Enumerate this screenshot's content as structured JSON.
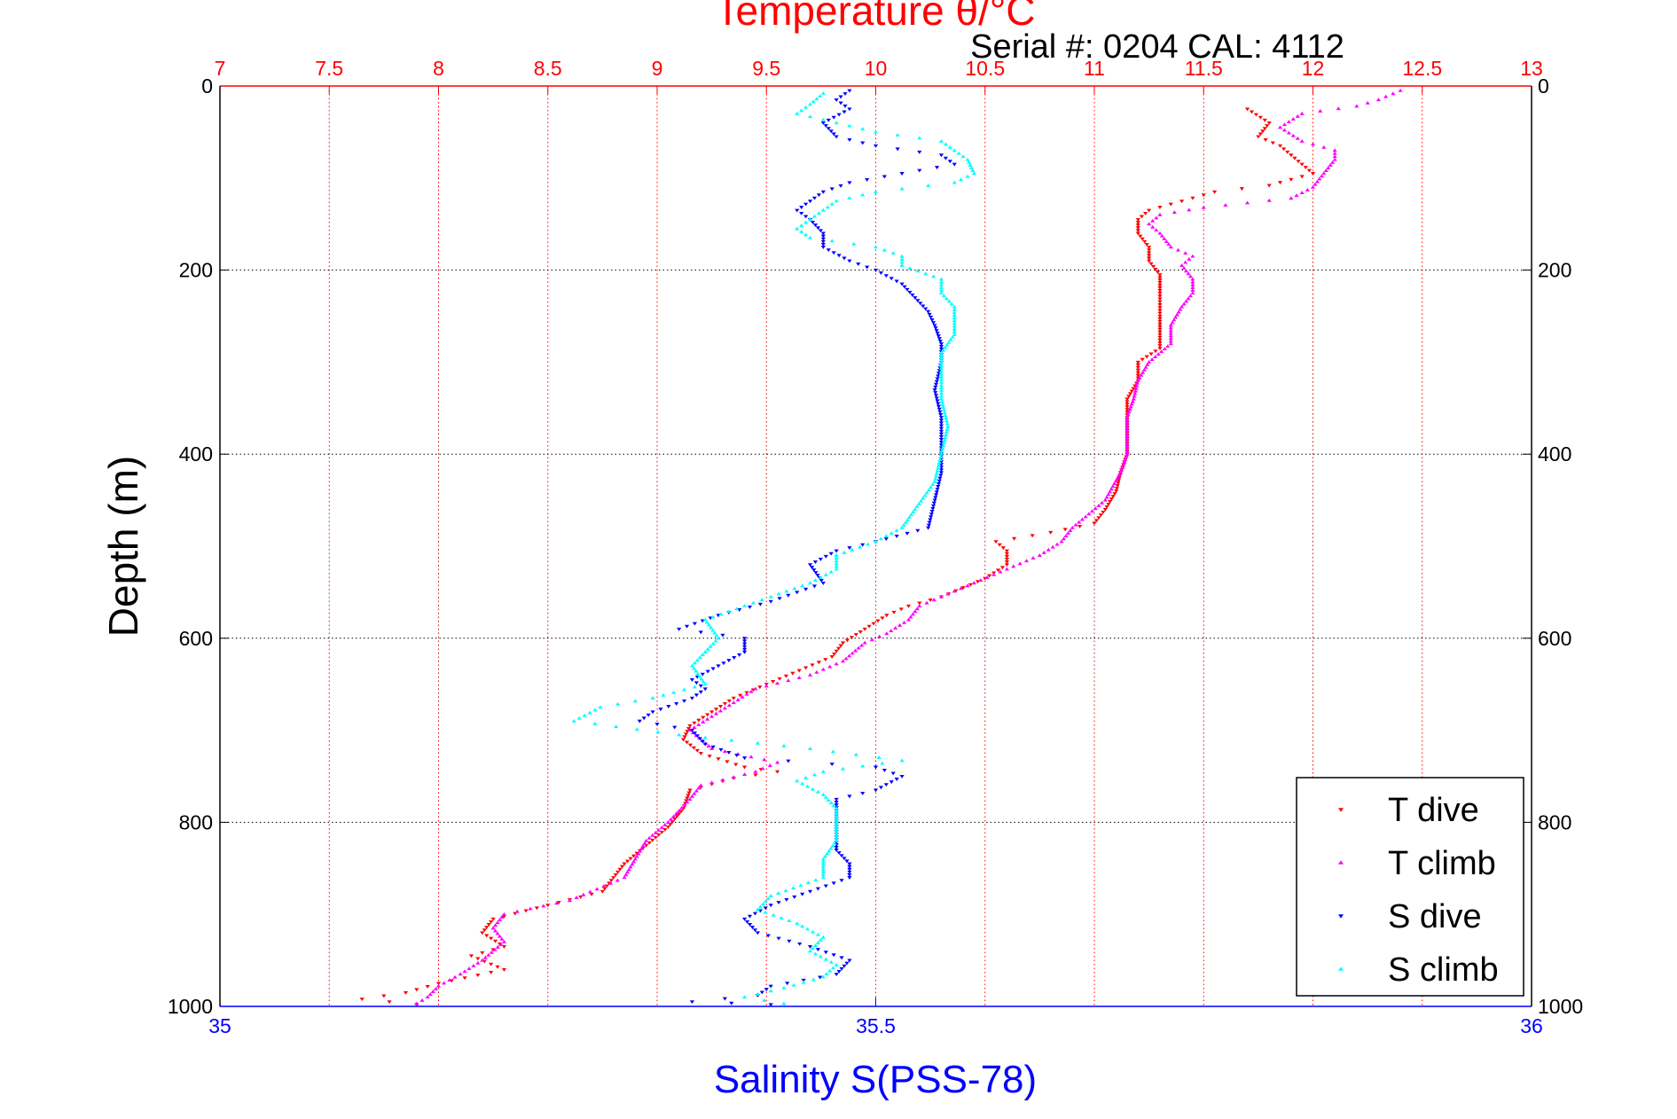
{
  "chart_data": {
    "type": "scatter",
    "title": "Temperature θ/°C",
    "subtitle": "Serial #: 0204  CAL: 4112",
    "ylabel": "Depth (m)",
    "xlabel_bottom": "Salinity S(PSS-78)",
    "y_axis": {
      "range": [
        0,
        1000
      ],
      "reversed": true,
      "ticks": [
        0,
        200,
        400,
        600,
        800,
        1000
      ],
      "tick_labels": [
        "0",
        "200",
        "400",
        "600",
        "800",
        "1000"
      ]
    },
    "temperature_axis": {
      "range": [
        7,
        13
      ],
      "ticks": [
        7,
        7.5,
        8,
        8.5,
        9,
        9.5,
        10,
        10.5,
        11,
        11.5,
        12,
        12.5,
        13
      ],
      "tick_labels": [
        "7",
        "7.5",
        "8",
        "8.5",
        "9",
        "9.5",
        "10",
        "10.5",
        "11",
        "11.5",
        "12",
        "12.5",
        "13"
      ],
      "color": "#ff0000"
    },
    "salinity_axis": {
      "range": [
        35,
        36
      ],
      "ticks": [
        35,
        35.5,
        36
      ],
      "tick_labels": [
        "35",
        "35.5",
        "36"
      ],
      "color": "#0000ff"
    },
    "grid": true,
    "legend_position": "bottom-right",
    "series": [
      {
        "name": "T dive",
        "axis": "temperature",
        "color": "#ff0000",
        "marker": "down-triangle",
        "points": [
          [
            11.7,
            25
          ],
          [
            11.8,
            40
          ],
          [
            11.75,
            55
          ],
          [
            11.85,
            65
          ],
          [
            11.9,
            75
          ],
          [
            11.95,
            85
          ],
          [
            12.0,
            95
          ],
          [
            11.8,
            108
          ],
          [
            11.55,
            115
          ],
          [
            11.4,
            125
          ],
          [
            11.25,
            135
          ],
          [
            11.2,
            145
          ],
          [
            11.2,
            160
          ],
          [
            11.25,
            175
          ],
          [
            11.25,
            190
          ],
          [
            11.3,
            205
          ],
          [
            11.3,
            225
          ],
          [
            11.3,
            250
          ],
          [
            11.3,
            270
          ],
          [
            11.3,
            285
          ],
          [
            11.2,
            300
          ],
          [
            11.2,
            320
          ],
          [
            11.15,
            340
          ],
          [
            11.15,
            360
          ],
          [
            11.15,
            380
          ],
          [
            11.15,
            400
          ],
          [
            11.12,
            420
          ],
          [
            11.1,
            440
          ],
          [
            11.05,
            460
          ],
          [
            11.0,
            475
          ],
          [
            10.8,
            485
          ],
          [
            10.55,
            495
          ],
          [
            10.6,
            505
          ],
          [
            10.6,
            520
          ],
          [
            10.5,
            535
          ],
          [
            10.4,
            545
          ],
          [
            10.3,
            555
          ],
          [
            10.15,
            565
          ],
          [
            10.05,
            575
          ],
          [
            9.95,
            590
          ],
          [
            9.85,
            605
          ],
          [
            9.8,
            620
          ],
          [
            9.65,
            635
          ],
          [
            9.5,
            650
          ],
          [
            9.35,
            665
          ],
          [
            9.25,
            680
          ],
          [
            9.15,
            695
          ],
          [
            9.12,
            710
          ],
          [
            9.2,
            725
          ],
          [
            9.4,
            740
          ],
          [
            9.55,
            745
          ],
          [
            9.35,
            752
          ],
          [
            9.15,
            765
          ],
          [
            9.12,
            785
          ],
          [
            9.05,
            805
          ],
          [
            8.95,
            825
          ],
          [
            8.85,
            845
          ],
          [
            8.8,
            860
          ],
          [
            8.75,
            875
          ],
          [
            8.5,
            890
          ],
          [
            8.25,
            905
          ],
          [
            8.2,
            920
          ],
          [
            8.3,
            935
          ],
          [
            8.15,
            945
          ],
          [
            8.3,
            960
          ],
          [
            8.0,
            975
          ],
          [
            7.85,
            985
          ],
          [
            7.65,
            992
          ],
          [
            7.9,
            998
          ]
        ]
      },
      {
        "name": "T climb",
        "axis": "temperature",
        "color": "#ff00ff",
        "marker": "up-triangle",
        "points": [
          [
            12.4,
            5
          ],
          [
            12.3,
            15
          ],
          [
            12.2,
            22
          ],
          [
            11.95,
            30
          ],
          [
            11.85,
            45
          ],
          [
            11.95,
            60
          ],
          [
            12.1,
            70
          ],
          [
            12.1,
            80
          ],
          [
            12.05,
            95
          ],
          [
            12.0,
            110
          ],
          [
            11.9,
            122
          ],
          [
            11.7,
            127
          ],
          [
            11.5,
            132
          ],
          [
            11.3,
            140
          ],
          [
            11.25,
            150
          ],
          [
            11.3,
            160
          ],
          [
            11.35,
            175
          ],
          [
            11.45,
            185
          ],
          [
            11.4,
            195
          ],
          [
            11.45,
            210
          ],
          [
            11.45,
            225
          ],
          [
            11.4,
            240
          ],
          [
            11.35,
            260
          ],
          [
            11.35,
            280
          ],
          [
            11.25,
            300
          ],
          [
            11.2,
            320
          ],
          [
            11.18,
            340
          ],
          [
            11.15,
            360
          ],
          [
            11.15,
            380
          ],
          [
            11.15,
            400
          ],
          [
            11.12,
            420
          ],
          [
            11.05,
            450
          ],
          [
            10.9,
            480
          ],
          [
            10.85,
            495
          ],
          [
            10.75,
            510
          ],
          [
            10.6,
            525
          ],
          [
            10.45,
            540
          ],
          [
            10.3,
            555
          ],
          [
            10.2,
            565
          ],
          [
            10.15,
            580
          ],
          [
            10.05,
            595
          ],
          [
            9.95,
            605
          ],
          [
            9.85,
            625
          ],
          [
            9.7,
            640
          ],
          [
            9.45,
            655
          ],
          [
            9.35,
            670
          ],
          [
            9.25,
            685
          ],
          [
            9.15,
            700
          ],
          [
            9.25,
            720
          ],
          [
            9.55,
            735
          ],
          [
            9.45,
            745
          ],
          [
            9.2,
            760
          ],
          [
            9.15,
            775
          ],
          [
            9.05,
            800
          ],
          [
            8.95,
            820
          ],
          [
            8.9,
            840
          ],
          [
            8.85,
            860
          ],
          [
            8.6,
            885
          ],
          [
            8.3,
            900
          ],
          [
            8.25,
            915
          ],
          [
            8.3,
            930
          ],
          [
            8.2,
            950
          ],
          [
            8.1,
            965
          ],
          [
            8.0,
            978
          ],
          [
            7.95,
            990
          ],
          [
            7.9,
            997
          ]
        ]
      },
      {
        "name": "S dive",
        "axis": "salinity",
        "color": "#0000ff",
        "marker": "down-triangle",
        "points": [
          [
            35.48,
            5
          ],
          [
            35.47,
            15
          ],
          [
            35.48,
            25
          ],
          [
            35.46,
            40
          ],
          [
            35.47,
            55
          ],
          [
            35.5,
            65
          ],
          [
            35.55,
            75
          ],
          [
            35.56,
            85
          ],
          [
            35.52,
            95
          ],
          [
            35.48,
            105
          ],
          [
            35.46,
            115
          ],
          [
            35.45,
            125
          ],
          [
            35.44,
            135
          ],
          [
            35.45,
            145
          ],
          [
            35.46,
            160
          ],
          [
            35.46,
            175
          ],
          [
            35.48,
            190
          ],
          [
            35.5,
            200
          ],
          [
            35.52,
            215
          ],
          [
            35.53,
            230
          ],
          [
            35.54,
            245
          ],
          [
            35.545,
            260
          ],
          [
            35.55,
            280
          ],
          [
            35.55,
            300
          ],
          [
            35.545,
            330
          ],
          [
            35.55,
            360
          ],
          [
            35.55,
            390
          ],
          [
            35.55,
            420
          ],
          [
            35.545,
            450
          ],
          [
            35.54,
            480
          ],
          [
            35.5,
            495
          ],
          [
            35.47,
            505
          ],
          [
            35.45,
            520
          ],
          [
            35.46,
            540
          ],
          [
            35.44,
            550
          ],
          [
            35.42,
            560
          ],
          [
            35.38,
            575
          ],
          [
            35.35,
            590
          ],
          [
            35.4,
            600
          ],
          [
            35.4,
            615
          ],
          [
            35.38,
            630
          ],
          [
            35.36,
            645
          ],
          [
            35.37,
            655
          ],
          [
            35.36,
            665
          ],
          [
            35.33,
            680
          ],
          [
            35.32,
            690
          ],
          [
            35.36,
            700
          ],
          [
            35.37,
            715
          ],
          [
            35.4,
            730
          ],
          [
            35.5,
            740
          ],
          [
            35.52,
            750
          ],
          [
            35.5,
            765
          ],
          [
            35.47,
            775
          ],
          [
            35.47,
            790
          ],
          [
            35.47,
            810
          ],
          [
            35.47,
            830
          ],
          [
            35.48,
            845
          ],
          [
            35.48,
            860
          ],
          [
            35.45,
            875
          ],
          [
            35.42,
            890
          ],
          [
            35.4,
            905
          ],
          [
            35.41,
            920
          ],
          [
            35.45,
            935
          ],
          [
            35.48,
            950
          ],
          [
            35.47,
            965
          ],
          [
            35.42,
            978
          ],
          [
            35.41,
            988
          ],
          [
            35.36,
            995
          ],
          [
            35.42,
            998
          ]
        ]
      },
      {
        "name": "S climb",
        "axis": "salinity",
        "color": "#00ffff",
        "marker": "up-triangle",
        "points": [
          [
            35.46,
            8
          ],
          [
            35.45,
            20
          ],
          [
            35.44,
            30
          ],
          [
            35.47,
            40
          ],
          [
            35.5,
            50
          ],
          [
            35.55,
            60
          ],
          [
            35.56,
            70
          ],
          [
            35.57,
            80
          ],
          [
            35.575,
            95
          ],
          [
            35.56,
            105
          ],
          [
            35.5,
            115
          ],
          [
            35.47,
            125
          ],
          [
            35.46,
            135
          ],
          [
            35.45,
            145
          ],
          [
            35.44,
            155
          ],
          [
            35.45,
            165
          ],
          [
            35.5,
            175
          ],
          [
            35.52,
            185
          ],
          [
            35.52,
            195
          ],
          [
            35.55,
            210
          ],
          [
            35.55,
            225
          ],
          [
            35.56,
            240
          ],
          [
            35.56,
            255
          ],
          [
            35.56,
            270
          ],
          [
            35.55,
            290
          ],
          [
            35.55,
            310
          ],
          [
            35.55,
            340
          ],
          [
            35.555,
            370
          ],
          [
            35.55,
            400
          ],
          [
            35.545,
            430
          ],
          [
            35.53,
            460
          ],
          [
            35.52,
            480
          ],
          [
            35.5,
            495
          ],
          [
            35.47,
            510
          ],
          [
            35.47,
            525
          ],
          [
            35.45,
            540
          ],
          [
            35.42,
            555
          ],
          [
            35.4,
            565
          ],
          [
            35.37,
            580
          ],
          [
            35.38,
            600
          ],
          [
            35.37,
            615
          ],
          [
            35.36,
            630
          ],
          [
            35.37,
            650
          ],
          [
            35.33,
            665
          ],
          [
            35.29,
            675
          ],
          [
            35.27,
            690
          ],
          [
            35.35,
            705
          ],
          [
            35.45,
            720
          ],
          [
            35.52,
            733
          ],
          [
            35.46,
            745
          ],
          [
            35.44,
            755
          ],
          [
            35.46,
            770
          ],
          [
            35.47,
            785
          ],
          [
            35.47,
            800
          ],
          [
            35.47,
            820
          ],
          [
            35.46,
            840
          ],
          [
            35.46,
            860
          ],
          [
            35.42,
            880
          ],
          [
            35.41,
            895
          ],
          [
            35.44,
            910
          ],
          [
            35.46,
            925
          ],
          [
            35.45,
            940
          ],
          [
            35.47,
            955
          ],
          [
            35.46,
            968
          ],
          [
            35.43,
            980
          ],
          [
            35.4,
            990
          ],
          [
            35.43,
            997
          ]
        ]
      }
    ]
  }
}
